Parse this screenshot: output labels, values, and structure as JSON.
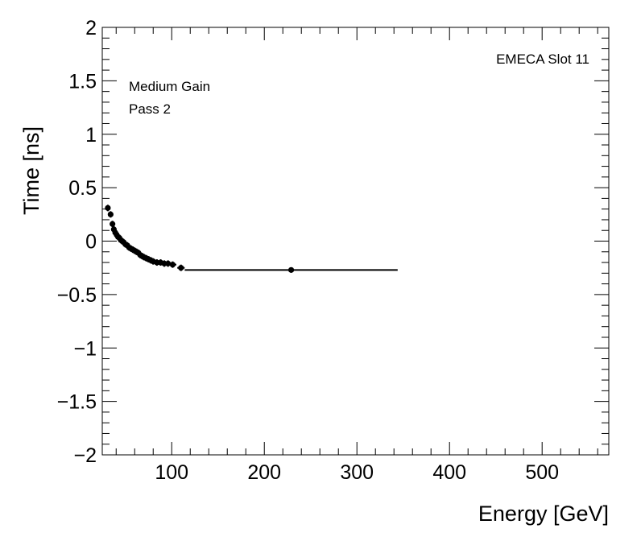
{
  "chart_data": {
    "type": "scatter",
    "xlabel": "Energy [GeV]",
    "ylabel": "Time [ns]",
    "xlim": [
      25,
      572
    ],
    "ylim": [
      -2,
      2
    ],
    "xticks": [
      100,
      200,
      300,
      400,
      500
    ],
    "xtick_labels": [
      "100",
      "200",
      "300",
      "400",
      "500"
    ],
    "yticks": [
      -2,
      -1.5,
      -1,
      -0.5,
      0,
      0.5,
      1,
      1.5,
      2
    ],
    "ytick_labels": [
      "−2",
      "−1.5",
      "−1",
      "−0.5",
      "0",
      "0.5",
      "1",
      "1.5",
      "2"
    ],
    "grid": false,
    "annotations": {
      "slot": "EMECA Slot 11",
      "gain": "Medium Gain",
      "pass": "Pass 2"
    },
    "series": [
      {
        "points": [
          {
            "x": 31,
            "y": 0.31,
            "xerr": 1.5,
            "yerr": 0.03
          },
          {
            "x": 34,
            "y": 0.25,
            "xerr": 1.5,
            "yerr": 0.03
          },
          {
            "x": 36,
            "y": 0.16,
            "xerr": 1.5,
            "yerr": 0.03
          },
          {
            "x": 37.5,
            "y": 0.11,
            "xerr": 1.5,
            "yerr": 0.03
          },
          {
            "x": 39,
            "y": 0.08,
            "xerr": 1.5,
            "yerr": 0.03
          },
          {
            "x": 40.5,
            "y": 0.06,
            "xerr": 1.5,
            "yerr": 0.03
          },
          {
            "x": 42,
            "y": 0.04,
            "xerr": 1.5,
            "yerr": 0.03
          },
          {
            "x": 43.5,
            "y": 0.03,
            "xerr": 1.5,
            "yerr": 0.03
          },
          {
            "x": 45,
            "y": 0.01,
            "xerr": 1.5,
            "yerr": 0.03
          },
          {
            "x": 46.5,
            "y": 0.0,
            "xerr": 1.5,
            "yerr": 0.03
          },
          {
            "x": 48,
            "y": -0.01,
            "xerr": 1.5,
            "yerr": 0.03
          },
          {
            "x": 50,
            "y": -0.03,
            "xerr": 2,
            "yerr": 0.03
          },
          {
            "x": 52,
            "y": -0.04,
            "xerr": 2,
            "yerr": 0.03
          },
          {
            "x": 54,
            "y": -0.06,
            "xerr": 2,
            "yerr": 0.03
          },
          {
            "x": 56,
            "y": -0.07,
            "xerr": 2,
            "yerr": 0.03
          },
          {
            "x": 58,
            "y": -0.08,
            "xerr": 2,
            "yerr": 0.03
          },
          {
            "x": 60,
            "y": -0.09,
            "xerr": 2,
            "yerr": 0.03
          },
          {
            "x": 62,
            "y": -0.1,
            "xerr": 2,
            "yerr": 0.03
          },
          {
            "x": 64,
            "y": -0.11,
            "xerr": 2,
            "yerr": 0.03
          },
          {
            "x": 66,
            "y": -0.13,
            "xerr": 2,
            "yerr": 0.03
          },
          {
            "x": 68,
            "y": -0.14,
            "xerr": 2,
            "yerr": 0.03
          },
          {
            "x": 70,
            "y": -0.15,
            "xerr": 2,
            "yerr": 0.03
          },
          {
            "x": 72.5,
            "y": -0.16,
            "xerr": 2,
            "yerr": 0.03
          },
          {
            "x": 75,
            "y": -0.17,
            "xerr": 2,
            "yerr": 0.03
          },
          {
            "x": 77.5,
            "y": -0.18,
            "xerr": 2.5,
            "yerr": 0.03
          },
          {
            "x": 80,
            "y": -0.19,
            "xerr": 2.5,
            "yerr": 0.03
          },
          {
            "x": 84,
            "y": -0.2,
            "xerr": 3,
            "yerr": 0.03
          },
          {
            "x": 88,
            "y": -0.2,
            "xerr": 3,
            "yerr": 0.03
          },
          {
            "x": 92,
            "y": -0.21,
            "xerr": 3,
            "yerr": 0.03
          },
          {
            "x": 96,
            "y": -0.21,
            "xerr": 3,
            "yerr": 0.03
          },
          {
            "x": 101,
            "y": -0.22,
            "xerr": 4,
            "yerr": 0.03
          },
          {
            "x": 110,
            "y": -0.25,
            "xerr": 4,
            "yerr": 0.03
          },
          {
            "x": 229,
            "y": -0.27,
            "xerr": 115,
            "yerr": 0.02
          }
        ]
      }
    ]
  }
}
